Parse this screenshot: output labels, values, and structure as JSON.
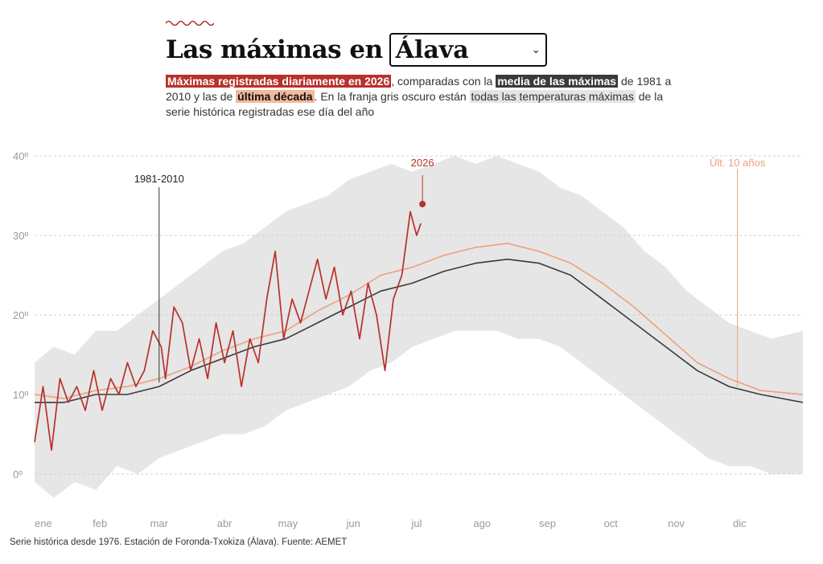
{
  "header": {
    "title": "Las máximas en",
    "region_selected": "Álava"
  },
  "subtitle": {
    "s1": "Máximas registradas diariamente en 2026",
    "s2": ", comparadas con la ",
    "s3": "media de las máximas",
    "s4": " de 1981 a 2010 y las de ",
    "s5": "última década",
    "s6": ". En la franja gris oscuro están ",
    "s7": "todas las temperaturas máximas",
    "s8": " de la serie histórica registradas ese día del año"
  },
  "footer": {
    "source": "Serie histórica desde 1976. Estación de Foronda-Txokiza (Álava). Fuente: AEMET"
  },
  "colors": {
    "current": "#b7312c",
    "mean": "#3a3a3a",
    "decade": "#eda07c",
    "band": "#e6e6e6"
  },
  "chart_data": {
    "type": "line",
    "x_axis": {
      "ticks": [
        "ene",
        "feb",
        "mar",
        "abr",
        "may",
        "jun",
        "jul",
        "ago",
        "sep",
        "oct",
        "nov",
        "dic"
      ],
      "range_days": [
        1,
        365
      ]
    },
    "y_axis": {
      "ticks": [
        "0º",
        "10º",
        "20º",
        "30º",
        "40º"
      ],
      "range": [
        -4,
        40
      ]
    },
    "annotations": {
      "mean": "1981-2010",
      "current": "2026",
      "decade": "Últ. 10 años"
    },
    "band_upper": [
      [
        1,
        14
      ],
      [
        10,
        16
      ],
      [
        20,
        15
      ],
      [
        30,
        18
      ],
      [
        40,
        18
      ],
      [
        50,
        20
      ],
      [
        60,
        22
      ],
      [
        70,
        24
      ],
      [
        80,
        26
      ],
      [
        90,
        28
      ],
      [
        100,
        29
      ],
      [
        110,
        31
      ],
      [
        120,
        33
      ],
      [
        130,
        34
      ],
      [
        140,
        35
      ],
      [
        150,
        37
      ],
      [
        160,
        38
      ],
      [
        170,
        39
      ],
      [
        180,
        38
      ],
      [
        190,
        39
      ],
      [
        200,
        40
      ],
      [
        210,
        39
      ],
      [
        220,
        40
      ],
      [
        230,
        39
      ],
      [
        240,
        38
      ],
      [
        250,
        36
      ],
      [
        260,
        35
      ],
      [
        270,
        33
      ],
      [
        280,
        31
      ],
      [
        290,
        28
      ],
      [
        300,
        26
      ],
      [
        310,
        23
      ],
      [
        320,
        21
      ],
      [
        330,
        19
      ],
      [
        340,
        18
      ],
      [
        350,
        17
      ],
      [
        365,
        18
      ]
    ],
    "band_lower": [
      [
        1,
        -1
      ],
      [
        10,
        -3
      ],
      [
        20,
        -1
      ],
      [
        30,
        -2
      ],
      [
        40,
        1
      ],
      [
        50,
        0
      ],
      [
        60,
        2
      ],
      [
        70,
        3
      ],
      [
        80,
        4
      ],
      [
        90,
        5
      ],
      [
        100,
        5
      ],
      [
        110,
        6
      ],
      [
        120,
        8
      ],
      [
        130,
        9
      ],
      [
        140,
        10
      ],
      [
        150,
        11
      ],
      [
        160,
        13
      ],
      [
        170,
        14
      ],
      [
        180,
        16
      ],
      [
        190,
        17
      ],
      [
        200,
        18
      ],
      [
        210,
        18
      ],
      [
        220,
        18
      ],
      [
        230,
        17
      ],
      [
        240,
        17
      ],
      [
        250,
        16
      ],
      [
        260,
        14
      ],
      [
        270,
        12
      ],
      [
        280,
        10
      ],
      [
        290,
        8
      ],
      [
        300,
        6
      ],
      [
        310,
        4
      ],
      [
        320,
        2
      ],
      [
        330,
        1
      ],
      [
        340,
        1
      ],
      [
        350,
        0
      ],
      [
        365,
        0
      ]
    ],
    "series": [
      {
        "name": "1981-2010",
        "points": [
          [
            1,
            9
          ],
          [
            15,
            9
          ],
          [
            30,
            10
          ],
          [
            45,
            10
          ],
          [
            60,
            11
          ],
          [
            75,
            13
          ],
          [
            90,
            14.5
          ],
          [
            105,
            16
          ],
          [
            120,
            17
          ],
          [
            135,
            19
          ],
          [
            150,
            21
          ],
          [
            165,
            23
          ],
          [
            180,
            24
          ],
          [
            195,
            25.5
          ],
          [
            210,
            26.5
          ],
          [
            225,
            27
          ],
          [
            240,
            26.5
          ],
          [
            255,
            25
          ],
          [
            270,
            22
          ],
          [
            285,
            19
          ],
          [
            300,
            16
          ],
          [
            315,
            13
          ],
          [
            330,
            11
          ],
          [
            345,
            10
          ],
          [
            365,
            9
          ]
        ]
      },
      {
        "name": "Últ. 10 años",
        "points": [
          [
            1,
            10
          ],
          [
            15,
            9.5
          ],
          [
            30,
            10.5
          ],
          [
            45,
            11
          ],
          [
            60,
            12
          ],
          [
            75,
            13.5
          ],
          [
            90,
            15.5
          ],
          [
            105,
            17
          ],
          [
            120,
            18
          ],
          [
            135,
            20.5
          ],
          [
            150,
            22.5
          ],
          [
            165,
            25
          ],
          [
            180,
            26
          ],
          [
            195,
            27.5
          ],
          [
            210,
            28.5
          ],
          [
            225,
            29
          ],
          [
            240,
            28
          ],
          [
            255,
            26.5
          ],
          [
            270,
            24
          ],
          [
            285,
            21
          ],
          [
            300,
            17.5
          ],
          [
            315,
            14
          ],
          [
            330,
            12
          ],
          [
            345,
            10.5
          ],
          [
            365,
            10
          ]
        ]
      },
      {
        "name": "2026",
        "points": [
          [
            1,
            4
          ],
          [
            5,
            11
          ],
          [
            9,
            3
          ],
          [
            13,
            12
          ],
          [
            17,
            9
          ],
          [
            21,
            11
          ],
          [
            25,
            8
          ],
          [
            29,
            13
          ],
          [
            33,
            8
          ],
          [
            37,
            12
          ],
          [
            41,
            10
          ],
          [
            45,
            14
          ],
          [
            49,
            11
          ],
          [
            53,
            13
          ],
          [
            57,
            18
          ],
          [
            61,
            16
          ],
          [
            63,
            12
          ],
          [
            67,
            21
          ],
          [
            71,
            19
          ],
          [
            75,
            13
          ],
          [
            79,
            17
          ],
          [
            83,
            12
          ],
          [
            87,
            19
          ],
          [
            91,
            14
          ],
          [
            95,
            18
          ],
          [
            99,
            11
          ],
          [
            103,
            17
          ],
          [
            107,
            14
          ],
          [
            111,
            22
          ],
          [
            115,
            28
          ],
          [
            119,
            17
          ],
          [
            123,
            22
          ],
          [
            127,
            19
          ],
          [
            131,
            23
          ],
          [
            135,
            27
          ],
          [
            139,
            22
          ],
          [
            143,
            26
          ],
          [
            147,
            20
          ],
          [
            151,
            23
          ],
          [
            155,
            17
          ],
          [
            159,
            24
          ],
          [
            163,
            20
          ],
          [
            167,
            13
          ],
          [
            171,
            22
          ],
          [
            175,
            25
          ],
          [
            179,
            33
          ],
          [
            182,
            30
          ],
          [
            184,
            31.5
          ]
        ]
      }
    ]
  }
}
